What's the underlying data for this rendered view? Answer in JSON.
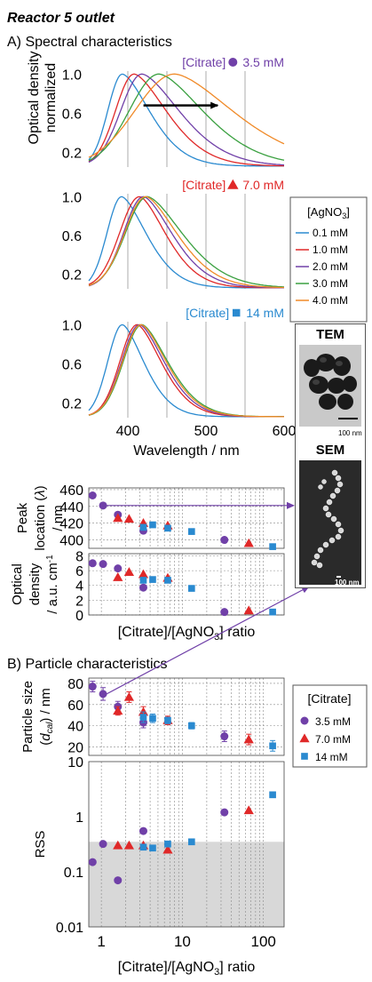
{
  "figure": {
    "title": "Reactor 5 outlet",
    "section_a": "A) Spectral characteristics",
    "section_b": "B) Particle characteristics"
  },
  "colors": {
    "purple": "#7040a8",
    "red": "#e02828",
    "blue": "#2a8ad0",
    "green": "#3aa040",
    "orange": "#f08a28",
    "shade": "#d8d8d8",
    "grid": "#888888"
  },
  "spectra_legend": {
    "title_prefix": "[AgNO",
    "title_sub": "3",
    "title_suffix": "]",
    "items": [
      {
        "label": "0.1 mM",
        "color": "#2a8ad0"
      },
      {
        "label": "1.0 mM",
        "color": "#e02828"
      },
      {
        "label": "2.0 mM",
        "color": "#7040a8"
      },
      {
        "label": "3.0 mM",
        "color": "#3aa040"
      },
      {
        "label": "4.0 mM",
        "color": "#f08a28"
      }
    ]
  },
  "particle_legend": {
    "title": "[Citrate]",
    "items": [
      {
        "label": "3.5 mM",
        "marker": "circle",
        "color": "#7040a8"
      },
      {
        "label": "7.0 mM",
        "marker": "triangle",
        "color": "#e02828"
      },
      {
        "label": "14 mM",
        "marker": "square",
        "color": "#2a8ad0"
      }
    ]
  },
  "micrographs": {
    "tem_label": "TEM",
    "tem_scale": "100 nm",
    "sem_label": "SEM",
    "sem_scale": "100 nm"
  },
  "chart_data": [
    {
      "id": "spectra_3_5",
      "type": "line",
      "annotation": {
        "text": "[Citrate]",
        "value": "3.5 mM",
        "marker": "circle",
        "color": "#7040a8"
      },
      "ylabel": "Optical density normalized",
      "yticks": [
        0.2,
        0.6,
        1.0
      ],
      "ylim": [
        0.05,
        1.03
      ],
      "xlim": [
        350,
        600
      ],
      "xticks": [
        400,
        450,
        500,
        550
      ],
      "arrow": {
        "from": 420,
        "to": 515,
        "y": 0.68
      },
      "series": [
        {
          "name": "0.1 mM",
          "color": "#2a8ad0",
          "peak": 393,
          "wl": 22,
          "wr": 42
        },
        {
          "name": "1.0 mM",
          "color": "#e02828",
          "peak": 408,
          "wl": 28,
          "wr": 50
        },
        {
          "name": "2.0 mM",
          "color": "#7040a8",
          "peak": 418,
          "wl": 32,
          "wr": 58
        },
        {
          "name": "3.0 mM",
          "color": "#3aa040",
          "peak": 440,
          "wl": 45,
          "wr": 68
        },
        {
          "name": "4.0 mM",
          "color": "#f08a28",
          "peak": 460,
          "wl": 60,
          "wr": 90
        }
      ]
    },
    {
      "id": "spectra_7_0",
      "type": "line",
      "annotation": {
        "text": "[Citrate]",
        "value": "7.0 mM",
        "marker": "triangle",
        "color": "#e02828"
      },
      "yticks": [
        0.2,
        0.6,
        1.0
      ],
      "ylim": [
        0.05,
        1.03
      ],
      "xlim": [
        350,
        600
      ],
      "xticks": [
        400,
        450,
        500,
        550
      ],
      "series": [
        {
          "name": "0.1 mM",
          "color": "#2a8ad0",
          "peak": 392,
          "wl": 22,
          "wr": 38
        },
        {
          "name": "1.0 mM",
          "color": "#e02828",
          "peak": 415,
          "wl": 30,
          "wr": 40
        },
        {
          "name": "2.0 mM",
          "color": "#7040a8",
          "peak": 420,
          "wl": 30,
          "wr": 44
        },
        {
          "name": "3.0 mM",
          "color": "#3aa040",
          "peak": 425,
          "wl": 33,
          "wr": 54
        },
        {
          "name": "4.0 mM",
          "color": "#f08a28",
          "peak": 423,
          "wl": 32,
          "wr": 48
        }
      ]
    },
    {
      "id": "spectra_14",
      "type": "line",
      "annotation": {
        "text": "[Citrate]",
        "value": "14 mM",
        "marker": "square",
        "color": "#2a8ad0"
      },
      "yticks": [
        0.2,
        0.6,
        1.0
      ],
      "ylim": [
        0.05,
        1.03
      ],
      "xlim": [
        350,
        600
      ],
      "xticks": [
        400,
        450,
        500,
        550
      ],
      "xticklabels": [
        {
          "x": 400,
          "label": "400"
        },
        {
          "x": 500,
          "label": "500"
        },
        {
          "x": 600,
          "label": "600"
        }
      ],
      "xlabel": "Wavelength / nm",
      "series": [
        {
          "name": "0.1 mM",
          "color": "#2a8ad0",
          "peak": 393,
          "wl": 22,
          "wr": 33
        },
        {
          "name": "1.0 mM",
          "color": "#e02828",
          "peak": 412,
          "wl": 26,
          "wr": 37
        },
        {
          "name": "2.0 mM",
          "color": "#7040a8",
          "peak": 415,
          "wl": 27,
          "wr": 38
        },
        {
          "name": "3.0 mM",
          "color": "#3aa040",
          "peak": 418,
          "wl": 28,
          "wr": 40
        },
        {
          "name": "4.0 mM",
          "color": "#f08a28",
          "peak": 417,
          "wl": 28,
          "wr": 39
        }
      ]
    },
    {
      "id": "peak_location",
      "type": "scatter",
      "xscale": "log",
      "xlim": [
        0.7,
        180
      ],
      "ylim": [
        390,
        462
      ],
      "yticks": [
        400,
        420,
        440,
        460
      ],
      "ylabel": "Peak location (λ) / nm",
      "series": [
        {
          "name": "3.5 mM",
          "marker": "circle",
          "color": "#7040a8",
          "points": [
            [
              0.78,
              453
            ],
            [
              1.05,
              441
            ],
            [
              1.6,
              430
            ],
            [
              3.3,
              411
            ],
            [
              33,
              400
            ]
          ]
        },
        {
          "name": "7.0 mM",
          "marker": "triangle",
          "color": "#e02828",
          "points": [
            [
              1.6,
              426
            ],
            [
              2.2,
              425
            ],
            [
              3.3,
              420
            ],
            [
              6.6,
              417
            ],
            [
              66,
              396
            ]
          ]
        },
        {
          "name": "14 mM",
          "marker": "square",
          "color": "#2a8ad0",
          "points": [
            [
              3.3,
              415
            ],
            [
              4.3,
              418
            ],
            [
              6.6,
              414
            ],
            [
              13,
              410
            ],
            [
              130,
              392
            ]
          ]
        }
      ]
    },
    {
      "id": "optical_density",
      "type": "scatter",
      "xscale": "log",
      "xlim": [
        0.7,
        180
      ],
      "ylim": [
        0,
        8.3
      ],
      "yticks": [
        0,
        2,
        4,
        6,
        8
      ],
      "ylabel": "Optical density / a.u. cm",
      "ylabel_sup": "-1",
      "xlabel": "[Citrate]/[AgNO3] ratio",
      "series": [
        {
          "name": "3.5 mM",
          "marker": "circle",
          "color": "#7040a8",
          "points": [
            [
              0.78,
              7.0
            ],
            [
              1.05,
              6.9
            ],
            [
              1.6,
              6.3
            ],
            [
              3.3,
              3.7
            ],
            [
              33,
              0.4
            ]
          ]
        },
        {
          "name": "7.0 mM",
          "marker": "triangle",
          "color": "#e02828",
          "points": [
            [
              1.6,
              5.1
            ],
            [
              2.2,
              5.8
            ],
            [
              3.3,
              5.5
            ],
            [
              6.6,
              5.0
            ],
            [
              66,
              0.6
            ]
          ]
        },
        {
          "name": "14 mM",
          "marker": "square",
          "color": "#2a8ad0",
          "points": [
            [
              3.3,
              4.7
            ],
            [
              4.3,
              4.8
            ],
            [
              6.6,
              4.7
            ],
            [
              13,
              3.6
            ],
            [
              130,
              0.4
            ]
          ]
        }
      ]
    },
    {
      "id": "particle_size",
      "type": "scatter",
      "xscale": "log",
      "xlim": [
        0.7,
        180
      ],
      "ylim": [
        12,
        85
      ],
      "yticks": [
        20,
        40,
        60,
        80
      ],
      "ylabel": "Particle size (d_cal) / nm",
      "errorbars": true,
      "series": [
        {
          "name": "3.5 mM",
          "marker": "circle",
          "color": "#7040a8",
          "points": [
            [
              0.78,
              77,
              5
            ],
            [
              1.05,
              70,
              6
            ],
            [
              1.6,
              58,
              5
            ],
            [
              3.3,
              43,
              5
            ],
            [
              33,
              30,
              5
            ]
          ]
        },
        {
          "name": "7.0 mM",
          "marker": "triangle",
          "color": "#e02828",
          "points": [
            [
              1.6,
              54,
              4
            ],
            [
              2.2,
              67,
              5
            ],
            [
              3.3,
              53,
              5
            ],
            [
              6.6,
              45,
              4
            ],
            [
              66,
              27,
              5
            ]
          ]
        },
        {
          "name": "14 mM",
          "marker": "square",
          "color": "#2a8ad0",
          "points": [
            [
              3.3,
              48,
              5
            ],
            [
              4.3,
              47,
              4
            ],
            [
              6.6,
              45,
              3
            ],
            [
              13,
              40,
              3
            ],
            [
              130,
              21,
              5
            ]
          ]
        }
      ]
    },
    {
      "id": "rss",
      "type": "scatter",
      "xscale": "log",
      "yscale": "log",
      "xlim": [
        0.7,
        180
      ],
      "ylim": [
        0.01,
        10
      ],
      "yticks": [
        0.01,
        0.1,
        1,
        10
      ],
      "yticklabels": [
        "0.01",
        "0.1",
        "1",
        "10"
      ],
      "ylabel": "RSS",
      "shaded_below": 0.35,
      "xticks": [
        1,
        10,
        100
      ],
      "xticklabels": [
        "1",
        "10",
        "100"
      ],
      "xlabel": "[Citrate]/[AgNO3] ratio",
      "series": [
        {
          "name": "3.5 mM",
          "marker": "circle",
          "color": "#7040a8",
          "points": [
            [
              0.78,
              0.15
            ],
            [
              1.05,
              0.32
            ],
            [
              1.6,
              0.07
            ],
            [
              3.3,
              0.55
            ],
            [
              33,
              1.2
            ]
          ]
        },
        {
          "name": "7.0 mM",
          "marker": "triangle",
          "color": "#e02828",
          "points": [
            [
              1.6,
              0.3
            ],
            [
              2.2,
              0.3
            ],
            [
              3.3,
              0.3
            ],
            [
              6.6,
              0.25
            ],
            [
              66,
              1.3
            ]
          ]
        },
        {
          "name": "14 mM",
          "marker": "square",
          "color": "#2a8ad0",
          "points": [
            [
              3.3,
              0.28
            ],
            [
              4.3,
              0.27
            ],
            [
              6.6,
              0.32
            ],
            [
              13,
              0.35
            ],
            [
              130,
              2.5
            ]
          ]
        }
      ]
    }
  ]
}
